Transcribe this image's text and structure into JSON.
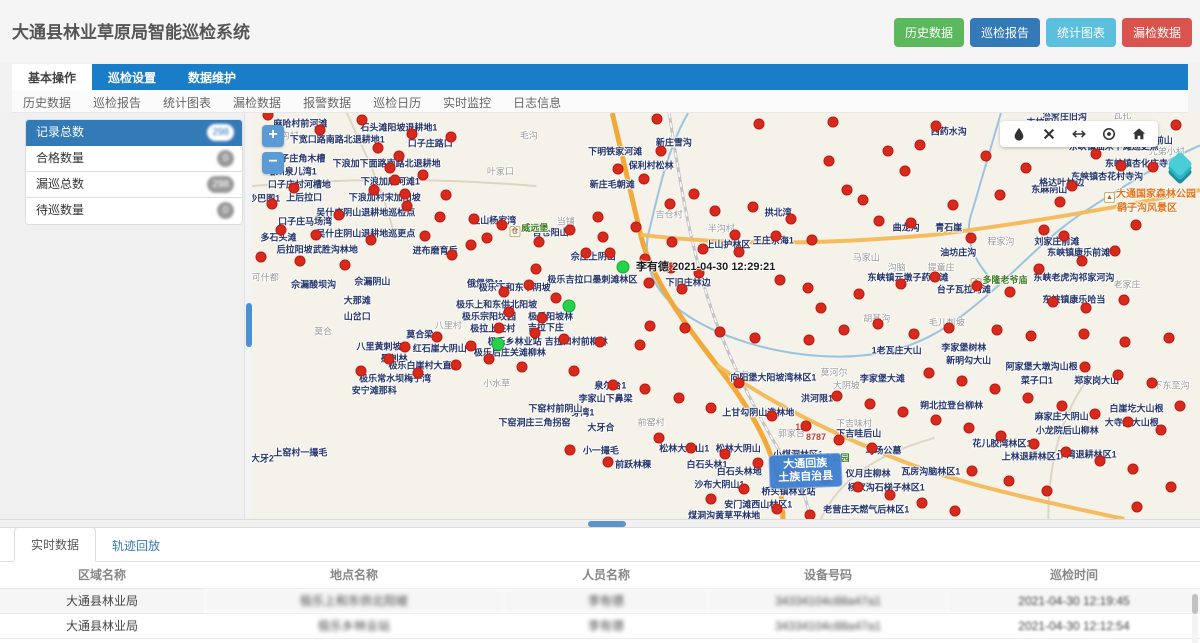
{
  "header": {
    "title": "大通县林业草原局智能巡检系统",
    "buttons": [
      {
        "label": "历史数据",
        "color": "#5cb85c",
        "name": "history-data-button"
      },
      {
        "label": "巡检报告",
        "color": "#337ab7",
        "name": "inspection-report-button"
      },
      {
        "label": "统计图表",
        "color": "#5bc0de",
        "name": "statistics-chart-button"
      },
      {
        "label": "漏检数据",
        "color": "#d9534f",
        "name": "missed-data-button"
      }
    ]
  },
  "nav": {
    "tabs": [
      {
        "label": "基本操作",
        "active": true
      },
      {
        "label": "巡检设置",
        "active": false
      },
      {
        "label": "数据维护",
        "active": false
      }
    ],
    "submenu": [
      "历史数据",
      "巡检报告",
      "统计图表",
      "漏检数据",
      "报警数据",
      "巡检日历",
      "实时监控",
      "日志信息"
    ]
  },
  "sidebar": {
    "items": [
      {
        "label": "记录总数",
        "badge": "298",
        "shape": "pill",
        "active": true
      },
      {
        "label": "合格数量",
        "badge": "0",
        "shape": "round",
        "active": false
      },
      {
        "label": "漏巡总数",
        "badge": "298",
        "shape": "pill",
        "active": false
      },
      {
        "label": "待巡数量",
        "badge": "0",
        "shape": "round",
        "active": false
      }
    ]
  },
  "map": {
    "zoom_in": "+",
    "zoom_out": "−",
    "toolbar_icons": [
      "drop-icon",
      "close-icon",
      "measure-icon",
      "locate-icon",
      "home-icon"
    ],
    "tracking_label": "李有德 2021-04-30 12:29:21",
    "county_label": [
      "大通回族",
      "土族自治县"
    ],
    "scenic_label": [
      "大通国家森林公园",
      "鹞子沟风景区"
    ],
    "road_numbers": [
      [
        58.1,
        77.4,
        "123"
      ],
      [
        59.5,
        79.9,
        "8787"
      ]
    ],
    "green_markers": [
      [
        39.1,
        38.0
      ],
      [
        33.4,
        47.6
      ],
      [
        26.0,
        56.8
      ]
    ],
    "green_pois": [
      [
        29.2,
        28.5,
        "威远堡"
      ],
      [
        78.8,
        41.4,
        "多隆老爷庙"
      ],
      [
        60.5,
        85.3,
        "桥头公园"
      ]
    ],
    "village_labels": [
      [
        3.5,
        5.5,
        "汪沟村"
      ],
      [
        29.2,
        5.5,
        "毛沟"
      ],
      [
        26.2,
        14.2,
        "叶家口"
      ],
      [
        33.1,
        26.6,
        "当铺"
      ],
      [
        44.0,
        24.8,
        "吉仓村"
      ],
      [
        49.5,
        28.3,
        "半沟村"
      ],
      [
        64.8,
        35.5,
        "马家山"
      ],
      [
        1.4,
        40.4,
        "可什都"
      ],
      [
        7.5,
        53.8,
        "莫合"
      ],
      [
        20.7,
        52.1,
        "八里村"
      ],
      [
        61.4,
        63.8,
        "莫河尔"
      ],
      [
        25.8,
        66.5,
        "小水草"
      ],
      [
        42.1,
        76.2,
        "前窑村"
      ],
      [
        52.1,
        64.5,
        "良教乡"
      ],
      [
        56.9,
        78.7,
        "郭家台"
      ],
      [
        62.7,
        67.0,
        "大阴坡"
      ],
      [
        63.5,
        76.4,
        "下吉味村"
      ],
      [
        79.0,
        31.5,
        "程家沟"
      ],
      [
        68.0,
        38.0,
        "沟脑"
      ],
      [
        72.7,
        38.0,
        "提童庄"
      ],
      [
        65.9,
        50.4,
        "胡基沟"
      ],
      [
        73.3,
        51.4,
        "毛儿刺坡"
      ],
      [
        92.3,
        42.2,
        "老家庄"
      ],
      [
        97.0,
        67.0,
        "下东至沟"
      ],
      [
        91.8,
        0.5,
        "瓦扎"
      ],
      [
        96.5,
        9.4,
        "兄弟小村"
      ]
    ],
    "poi_labels": [
      [
        5.1,
        2.5,
        "麻哈村前河滩"
      ],
      [
        15.5,
        3.5,
        "石头滩阳坡退耕地1"
      ],
      [
        9.0,
        6.3,
        "下宽口路南路北退耕地1"
      ],
      [
        18.8,
        7.5,
        "口子庄路口"
      ],
      [
        4.9,
        11.2,
        "口子庄角木槽"
      ],
      [
        14.2,
        12.2,
        "下浪加下面路南路北退耕地"
      ],
      [
        4.2,
        14.2,
        "哈州泉儿湾1"
      ],
      [
        5.0,
        17.4,
        "口子庄村河槽地"
      ],
      [
        14.6,
        16.7,
        "下浪加磨河滩1"
      ],
      [
        5.5,
        20.6,
        "上后拉口"
      ],
      [
        14.0,
        20.6,
        "下浪加村宋加阳坡"
      ],
      [
        0.8,
        20.9,
        "小沙巴图1"
      ],
      [
        12.0,
        24.4,
        "吴什庄阴山退耕地巡检点"
      ],
      [
        5.6,
        26.6,
        "口子庄马场湾"
      ],
      [
        25.5,
        26.4,
        "上山杨家湾"
      ],
      [
        12.0,
        29.6,
        "吴什庄阴山退耕地巡更点"
      ],
      [
        2.8,
        30.6,
        "多石头滩"
      ],
      [
        4.5,
        33.5,
        "后拉阳坡"
      ],
      [
        8.8,
        33.5,
        "武胜沟林地"
      ],
      [
        19.3,
        33.8,
        "进布磨育后"
      ],
      [
        6.5,
        42.2,
        "佘漏酸坝沟"
      ],
      [
        12.7,
        41.5,
        "佘漏阴山"
      ],
      [
        11.1,
        46.0,
        "大那滩"
      ],
      [
        11.1,
        49.9,
        "山岔口"
      ],
      [
        17.7,
        54.4,
        "莫合梁"
      ],
      [
        13.4,
        57.4,
        "八里黄刺坡"
      ],
      [
        19.8,
        57.9,
        "红石崖大阴山"
      ],
      [
        15.0,
        60.3,
        "墨刺林"
      ],
      [
        18.2,
        62.1,
        "极乐白崖村大直沟"
      ],
      [
        15.1,
        65.3,
        "极乐常水坝梅子湾"
      ],
      [
        12.9,
        68.3,
        "安宁滩那科"
      ],
      [
        24.6,
        41.9,
        "俄堡梁11"
      ],
      [
        35.9,
        40.9,
        "极乐吉拉口墨刺滩林区"
      ],
      [
        27.7,
        42.9,
        "极乐下和东下阴坡"
      ],
      [
        25.8,
        47.1,
        "极乐上和东供北阳坡"
      ],
      [
        25.0,
        50.1,
        "极乐宗阳坟园"
      ],
      [
        31.5,
        50.1,
        "极乐阳坡林"
      ],
      [
        25.4,
        52.9,
        "极拉上庄村"
      ],
      [
        31.0,
        52.7,
        "吉拉下庄"
      ],
      [
        27.7,
        56.1,
        "极乐乡林业站"
      ],
      [
        34.2,
        56.1,
        "吉拉口村前柳林"
      ],
      [
        27.2,
        58.8,
        "极乐后庄关滩柳林"
      ],
      [
        36.0,
        35.2,
        "佘庄上阴山"
      ],
      [
        46.0,
        41.7,
        "下旧庄林边"
      ],
      [
        31.5,
        29.3,
        "吉仓阳山"
      ],
      [
        37.8,
        67.0,
        "泉尔台1"
      ],
      [
        37.3,
        70.2,
        "李家山下鼻梁"
      ],
      [
        34.9,
        73.7,
        "芽湾1"
      ],
      [
        36.8,
        77.4,
        "大牙合"
      ],
      [
        36.8,
        83.1,
        "小一撮毛"
      ],
      [
        40.2,
        86.4,
        "前跃林稞"
      ],
      [
        45.6,
        82.6,
        "松林大阴山1"
      ],
      [
        51.3,
        82.6,
        "松林大阴山"
      ],
      [
        48.0,
        86.4,
        "白石头林1"
      ],
      [
        51.4,
        88.1,
        "白石头林地"
      ],
      [
        49.3,
        91.3,
        "沙布大阴山1"
      ],
      [
        53.4,
        96.3,
        "安门滩西山林区1"
      ],
      [
        49.8,
        99.0,
        "煤洞沟黄草平林地"
      ],
      [
        55.0,
        65.0,
        "向阳堡大阳坡湾林区1"
      ],
      [
        59.6,
        70.2,
        "洪河限1"
      ],
      [
        53.4,
        73.7,
        "上甘勾阴山造林地"
      ],
      [
        64.0,
        78.7,
        "下吉哇后山"
      ],
      [
        57.6,
        83.9,
        "小煤洞林区1"
      ],
      [
        66.6,
        83.1,
        "马场公墓"
      ],
      [
        65.0,
        88.6,
        "仪月庄柳林"
      ],
      [
        66.9,
        92.1,
        "杨家沟石梯子林区1"
      ],
      [
        64.8,
        97.5,
        "老营庄天燃气后林区1"
      ],
      [
        56.6,
        93.1,
        "桥头镇林业站"
      ],
      [
        69.0,
        28.0,
        "曲龙沟"
      ],
      [
        73.5,
        28.0,
        "青石崖"
      ],
      [
        74.5,
        34.2,
        "油坊庄沟"
      ],
      [
        84.9,
        31.5,
        "刘家庄前滩"
      ],
      [
        87.2,
        34.2,
        "东峡镇康乐前滩"
      ],
      [
        69.2,
        40.4,
        "东峡镇元墩子药水滩"
      ],
      [
        86.7,
        40.4,
        "东峡老虎沟祁家河沟"
      ],
      [
        75.1,
        43.4,
        "台子瓦拉河滩"
      ],
      [
        86.7,
        45.9,
        "东峡镇康乐哈当"
      ],
      [
        68.0,
        58.3,
        "1老瓦庄大山"
      ],
      [
        75.1,
        57.6,
        "李家堡树林"
      ],
      [
        75.6,
        60.8,
        "新明勾大山"
      ],
      [
        90.9,
        8.2,
        "东峡镇仙米下滩巡更点"
      ],
      [
        93.3,
        12.4,
        "东峡镇杏化庄寺"
      ],
      [
        90.2,
        15.6,
        "东峡镇杏花村寺沟"
      ],
      [
        84.1,
        18.6,
        "东麻阴山"
      ],
      [
        85.4,
        16.9,
        "格达叶林边"
      ],
      [
        38.3,
        9.4,
        "下明铁家河滩"
      ],
      [
        42.1,
        12.7,
        "保利村松林"
      ],
      [
        38.0,
        17.4,
        "新庄毛朝滩"
      ],
      [
        44.5,
        7.2,
        "新庄雪沟"
      ],
      [
        55.5,
        24.3,
        "拱北湾"
      ],
      [
        50.2,
        32.3,
        "上山护林区"
      ],
      [
        55.0,
        31.3,
        "王庄佘海1"
      ],
      [
        73.5,
        4.5,
        "西药水沟"
      ],
      [
        85.7,
        0.7,
        "冶家庄旧沟"
      ],
      [
        83.6,
        2.2,
        "吉拉阳山"
      ],
      [
        89.4,
        7.0,
        "青泉者1"
      ],
      [
        88.5,
        4.2,
        "东峡尔麻寨阳山"
      ],
      [
        93.8,
        6.7,
        "东峡镇尔麻前山"
      ],
      [
        66.5,
        65.3,
        "李家堡大滩"
      ],
      [
        82.8,
        65.8,
        "菜子口1"
      ],
      [
        83.3,
        62.3,
        "阿家堡大墩沟山根"
      ],
      [
        89.1,
        65.8,
        "郑家岗大山"
      ],
      [
        73.8,
        72.0,
        "朔北拉登台柳林"
      ],
      [
        85.4,
        74.7,
        "麻家庄大阴山"
      ],
      [
        86.0,
        78.2,
        "小龙院后山柳林"
      ],
      [
        92.8,
        76.2,
        "大寺崖大山根"
      ],
      [
        93.3,
        72.7,
        "白崖圪大山根"
      ],
      [
        71.6,
        88.1,
        "瓦房沟脑林区1"
      ],
      [
        82.2,
        84.4,
        "上林退耕林区1"
      ],
      [
        88.1,
        83.9,
        "下湾退耕林区1"
      ],
      [
        79.1,
        81.4,
        "花儿胶湾林区1"
      ],
      [
        1.1,
        84.9,
        "大牙2"
      ],
      [
        5.1,
        83.6,
        "上窑村一撮毛"
      ],
      [
        32.0,
        72.7,
        "下窑村前阴山"
      ],
      [
        29.8,
        76.2,
        "下窑洞庄三角拐窑"
      ]
    ],
    "red_markers": [
      [
        1.7,
        0.6
      ],
      [
        11.6,
        1.8
      ],
      [
        7.2,
        4.3
      ],
      [
        16.9,
        5.1
      ],
      [
        13.3,
        8.5
      ],
      [
        15.5,
        10.5
      ],
      [
        14.6,
        13.5
      ],
      [
        15.1,
        16.5
      ],
      [
        12.9,
        19.0
      ],
      [
        16.1,
        19.9
      ],
      [
        4.4,
        18.5
      ],
      [
        2.1,
        22.5
      ],
      [
        9.2,
        25.0
      ],
      [
        16.4,
        23.0
      ],
      [
        3.1,
        28.7
      ],
      [
        6.7,
        30.0
      ],
      [
        12.5,
        31.2
      ],
      [
        18.3,
        30.4
      ],
      [
        1.0,
        35.4
      ],
      [
        5.1,
        36.4
      ],
      [
        9.8,
        37.4
      ],
      [
        21.1,
        34.9
      ],
      [
        23.1,
        32.4
      ],
      [
        19.8,
        25.5
      ],
      [
        23.4,
        26.0
      ],
      [
        26.4,
        27.5
      ],
      [
        24.8,
        30.9
      ],
      [
        20.5,
        20.3
      ],
      [
        18.0,
        15.3
      ],
      [
        21.0,
        6.0
      ],
      [
        42.7,
        1.6
      ],
      [
        53.5,
        2.8
      ],
      [
        43.1,
        9.3
      ],
      [
        38.6,
        13.8
      ],
      [
        41.4,
        16.3
      ],
      [
        46.6,
        20.0
      ],
      [
        44.1,
        22.5
      ],
      [
        48.8,
        24.2
      ],
      [
        52.9,
        23.2
      ],
      [
        56.9,
        26.2
      ],
      [
        40.5,
        28.0
      ],
      [
        36.5,
        25.5
      ],
      [
        33.5,
        28.7
      ],
      [
        30.3,
        31.7
      ],
      [
        55.3,
        30.2
      ],
      [
        59.1,
        31.2
      ],
      [
        44.3,
        31.7
      ],
      [
        47.6,
        33.4
      ],
      [
        50.9,
        30.0
      ],
      [
        37.0,
        30.5
      ],
      [
        61.3,
        2.1
      ],
      [
        72.2,
        3.3
      ],
      [
        83.6,
        6.1
      ],
      [
        87.1,
        6.1
      ],
      [
        67.1,
        9.3
      ],
      [
        70.5,
        8.0
      ],
      [
        91.7,
        13.0
      ],
      [
        95.0,
        13.3
      ],
      [
        81.6,
        13.5
      ],
      [
        68.9,
        14.3
      ],
      [
        86.5,
        18.0
      ],
      [
        73.9,
        22.7
      ],
      [
        78.9,
        20.2
      ],
      [
        85.2,
        22.0
      ],
      [
        66.1,
        26.5
      ],
      [
        69.5,
        27.0
      ],
      [
        83.5,
        28.9
      ],
      [
        85.7,
        30.4
      ],
      [
        93.3,
        27.7
      ],
      [
        75.8,
        30.7
      ],
      [
        62.8,
        19.0
      ],
      [
        64.4,
        21.5
      ],
      [
        77.4,
        10.5
      ],
      [
        60.9,
        11.8
      ],
      [
        97.5,
        3.0
      ],
      [
        89.0,
        10.0
      ],
      [
        35.2,
        34.4
      ],
      [
        37.8,
        34.4
      ],
      [
        41.5,
        35.9
      ],
      [
        51.4,
        34.2
      ],
      [
        44.2,
        38.1
      ],
      [
        47.2,
        39.3
      ],
      [
        41.9,
        41.8
      ],
      [
        45.4,
        43.3
      ],
      [
        55.7,
        41.1
      ],
      [
        58.6,
        43.0
      ],
      [
        29.2,
        42.3
      ],
      [
        32.1,
        45.5
      ],
      [
        27.1,
        49.0
      ],
      [
        30.6,
        50.5
      ],
      [
        26.1,
        53.0
      ],
      [
        29.8,
        54.2
      ],
      [
        32.9,
        55.7
      ],
      [
        36.7,
        56.4
      ],
      [
        40.9,
        57.2
      ],
      [
        23.1,
        57.4
      ],
      [
        19.5,
        55.2
      ],
      [
        16.1,
        57.7
      ],
      [
        26.6,
        44.0
      ],
      [
        30.0,
        38.5
      ],
      [
        42.0,
        52.5
      ],
      [
        45.7,
        53.0
      ],
      [
        49.4,
        54.0
      ],
      [
        53.1,
        55.5
      ],
      [
        58.8,
        56.0
      ],
      [
        62.4,
        53.5
      ],
      [
        66.0,
        52.0
      ],
      [
        69.8,
        54.5
      ],
      [
        73.5,
        53.0
      ],
      [
        78.6,
        53.5
      ],
      [
        82.2,
        55.0
      ],
      [
        87.8,
        54.5
      ],
      [
        92.1,
        56.5
      ],
      [
        96.7,
        55.5
      ],
      [
        60.0,
        48.0
      ],
      [
        64.0,
        44.5
      ],
      [
        68.5,
        42.0
      ],
      [
        72.0,
        40.5
      ],
      [
        76.5,
        42.5
      ],
      [
        80.0,
        44.0
      ],
      [
        84.5,
        46.5
      ],
      [
        88.0,
        48.0
      ],
      [
        92.0,
        46.0
      ],
      [
        83.0,
        38.5
      ],
      [
        87.5,
        36.5
      ],
      [
        91.0,
        34.0
      ],
      [
        14.5,
        60.5
      ],
      [
        11.5,
        63.5
      ],
      [
        17.5,
        64.0
      ],
      [
        21.5,
        62.0
      ],
      [
        25.0,
        60.5
      ],
      [
        28.5,
        62.5
      ],
      [
        34.0,
        63.5
      ],
      [
        38.1,
        66.9
      ],
      [
        41.5,
        68.1
      ],
      [
        45.0,
        70.1
      ],
      [
        48.4,
        72.6
      ],
      [
        42.9,
        80.1
      ],
      [
        46.3,
        82.6
      ],
      [
        49.9,
        84.1
      ],
      [
        53.4,
        86.1
      ],
      [
        56.9,
        88.1
      ],
      [
        60.4,
        90.1
      ],
      [
        63.9,
        92.1
      ],
      [
        67.3,
        94.1
      ],
      [
        51.9,
        92.6
      ],
      [
        48.4,
        95.1
      ],
      [
        55.4,
        97.6
      ],
      [
        58.9,
        99.1
      ],
      [
        70.7,
        96.1
      ],
      [
        74.2,
        98.1
      ],
      [
        61.9,
        80.6
      ],
      [
        65.4,
        82.6
      ],
      [
        58.4,
        77.1
      ],
      [
        54.9,
        74.6
      ],
      [
        51.4,
        66.6
      ],
      [
        61.7,
        69.6
      ],
      [
        65.2,
        71.6
      ],
      [
        68.7,
        73.6
      ],
      [
        72.1,
        75.6
      ],
      [
        75.6,
        77.6
      ],
      [
        79.0,
        79.6
      ],
      [
        82.5,
        81.6
      ],
      [
        85.9,
        83.6
      ],
      [
        89.4,
        85.6
      ],
      [
        92.9,
        87.6
      ],
      [
        75.9,
        88.1
      ],
      [
        79.9,
        90.6
      ],
      [
        83.9,
        93.1
      ],
      [
        71.4,
        64.1
      ],
      [
        74.9,
        66.1
      ],
      [
        78.4,
        68.1
      ],
      [
        81.9,
        70.1
      ],
      [
        85.4,
        72.1
      ],
      [
        88.9,
        74.1
      ],
      [
        92.4,
        76.1
      ],
      [
        95.9,
        78.1
      ],
      [
        87.9,
        62.6
      ],
      [
        91.4,
        64.6
      ],
      [
        94.9,
        66.6
      ],
      [
        97.9,
        72.1
      ],
      [
        96.9,
        92.1
      ],
      [
        93.4,
        97.1
      ],
      [
        37.5,
        86.0
      ],
      [
        33.5,
        83.0
      ]
    ]
  },
  "bottom": {
    "tabs": [
      {
        "label": "实时数据",
        "active": true
      },
      {
        "label": "轨迹回放",
        "active": false
      }
    ],
    "table": {
      "columns": [
        "区域名称",
        "地点名称",
        "人员名称",
        "设备号码",
        "巡检时间"
      ],
      "rows": [
        [
          "大通县林业局",
          "极乐上和东供北阳坡",
          "李有德",
          "34334104c88a47a1",
          "2021-04-30 12:19:45"
        ],
        [
          "大通县林业局",
          "极乐乡林业站",
          "李有德",
          "34334104c88a47a1",
          "2021-04-30 12:12:54"
        ]
      ]
    }
  }
}
